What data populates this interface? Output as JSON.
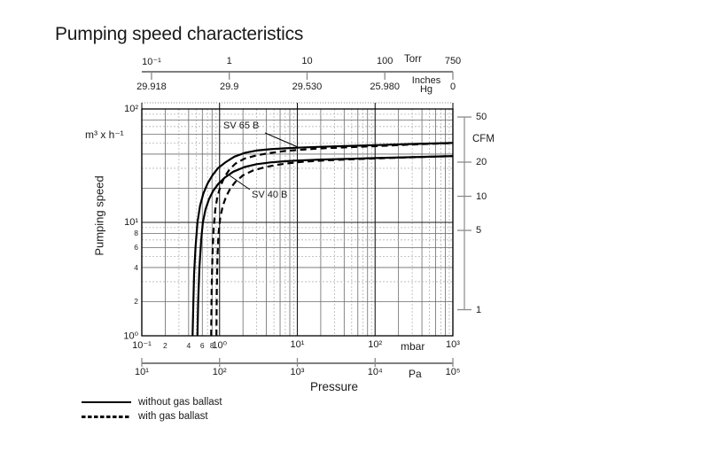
{
  "title": "Pumping speed characteristics",
  "chart_data": {
    "type": "line",
    "title": "Pumping speed characteristics",
    "xlabel": "Pressure",
    "x_scale": "log",
    "y_scale": "log",
    "x_range_mbar": [
      0.1,
      1000
    ],
    "y_range_m3h": [
      1,
      100
    ],
    "grid": true,
    "colors": {
      "line": "#000000",
      "grid_major": "#1a1a1a",
      "grid_minor_dark": "#6a6a6a",
      "grid_minor_light": "#b4b4b4",
      "text": "#1a1a1a"
    },
    "axes": {
      "torr": {
        "unit": "Torr",
        "side": "top",
        "ticks": [
          {
            "label": "10⁻¹",
            "mbar": 0.1333
          },
          {
            "label": "1",
            "mbar": 1.333
          },
          {
            "label": "10",
            "mbar": 13.33
          },
          {
            "label": "100",
            "mbar": 133.3
          },
          {
            "label": "750",
            "mbar": 1000
          }
        ]
      },
      "inches_hg": {
        "unit": "Inches Hg",
        "side": "top",
        "ticks": [
          {
            "label": "29.918",
            "mbar": 0.1333
          },
          {
            "label": "29.9",
            "mbar": 1.333
          },
          {
            "label": "29.530",
            "mbar": 13.33
          },
          {
            "label": "25.980",
            "mbar": 133.3
          },
          {
            "label": "0",
            "mbar": 1000
          }
        ]
      },
      "mbar": {
        "unit": "mbar",
        "side": "bottom",
        "ticks": [
          {
            "label": "10⁻¹",
            "mbar": 0.1
          },
          {
            "label": "10⁰",
            "mbar": 1
          },
          {
            "label": "10¹",
            "mbar": 10
          },
          {
            "label": "10²",
            "mbar": 100
          },
          {
            "label": "10³",
            "mbar": 1000
          }
        ],
        "minor_labels": [
          {
            "label": "2",
            "mbar": 0.2
          },
          {
            "label": "4",
            "mbar": 0.4
          },
          {
            "label": "6",
            "mbar": 0.6
          },
          {
            "label": "8",
            "mbar": 0.8
          }
        ]
      },
      "pa": {
        "unit": "Pa",
        "side": "bottom",
        "ticks": [
          {
            "label": "10¹",
            "mbar": 0.1
          },
          {
            "label": "10²",
            "mbar": 1
          },
          {
            "label": "10³",
            "mbar": 10
          },
          {
            "label": "10⁴",
            "mbar": 100
          },
          {
            "label": "10⁵",
            "mbar": 1000
          }
        ]
      },
      "m3h": {
        "unit": "m³ x h⁻¹",
        "label": "Pumping speed",
        "side": "left",
        "ticks": [
          {
            "label": "10⁰",
            "value": 1
          },
          {
            "label": "10¹",
            "value": 10
          },
          {
            "label": "10²",
            "value": 100
          }
        ],
        "minor_labels": [
          {
            "label": "2",
            "value": 2
          },
          {
            "label": "4",
            "value": 4
          },
          {
            "label": "6",
            "value": 6
          },
          {
            "label": "8",
            "value": 8
          }
        ]
      },
      "cfm": {
        "unit": "CFM",
        "side": "right",
        "ticks": [
          {
            "label": "1",
            "m3h": 1.699
          },
          {
            "label": "5",
            "m3h": 8.495
          },
          {
            "label": "10",
            "m3h": 16.99
          },
          {
            "label": "20",
            "m3h": 33.98
          },
          {
            "label": "50",
            "m3h": 84.95
          }
        ]
      }
    },
    "series": [
      {
        "name": "SV 65 B",
        "variant": "without gas ballast",
        "style": "solid",
        "points": [
          [
            0.45,
            1
          ],
          [
            0.46,
            2
          ],
          [
            0.47,
            3.5
          ],
          [
            0.49,
            6
          ],
          [
            0.52,
            10
          ],
          [
            0.56,
            14
          ],
          [
            0.62,
            18
          ],
          [
            0.7,
            22
          ],
          [
            0.81,
            26
          ],
          [
            0.95,
            30
          ],
          [
            1.2,
            34
          ],
          [
            1.55,
            38
          ],
          [
            2.1,
            41
          ],
          [
            3.0,
            43
          ],
          [
            4.5,
            44.2
          ],
          [
            7,
            45
          ],
          [
            10,
            45.6
          ],
          [
            20,
            46.4
          ],
          [
            50,
            47.3
          ],
          [
            100,
            48
          ],
          [
            300,
            49.1
          ],
          [
            1000,
            50.2
          ]
        ]
      },
      {
        "name": "SV 65 B",
        "variant": "with gas ballast",
        "style": "dashed",
        "points": [
          [
            0.78,
            1
          ],
          [
            0.79,
            2.5
          ],
          [
            0.81,
            5
          ],
          [
            0.84,
            9
          ],
          [
            0.88,
            13
          ],
          [
            0.94,
            17
          ],
          [
            1.03,
            21
          ],
          [
            1.15,
            25
          ],
          [
            1.33,
            29
          ],
          [
            1.6,
            33
          ],
          [
            2.1,
            36.5
          ],
          [
            3.0,
            39
          ],
          [
            4.5,
            41
          ],
          [
            7,
            42.6
          ],
          [
            10,
            43.5
          ],
          [
            20,
            44.9
          ],
          [
            50,
            46.1
          ],
          [
            100,
            47
          ],
          [
            300,
            48.6
          ],
          [
            1000,
            50
          ]
        ]
      },
      {
        "name": "SV 40 B",
        "variant": "without gas ballast",
        "style": "solid",
        "points": [
          [
            0.52,
            1
          ],
          [
            0.53,
            2
          ],
          [
            0.55,
            4
          ],
          [
            0.58,
            7
          ],
          [
            0.61,
            10
          ],
          [
            0.66,
            13
          ],
          [
            0.73,
            16
          ],
          [
            0.83,
            19
          ],
          [
            0.97,
            22
          ],
          [
            1.18,
            25
          ],
          [
            1.5,
            28
          ],
          [
            2.1,
            30.8
          ],
          [
            3.0,
            32.6
          ],
          [
            4.5,
            33.8
          ],
          [
            7,
            34.6
          ],
          [
            10,
            35.1
          ],
          [
            20,
            35.8
          ],
          [
            50,
            36.4
          ],
          [
            100,
            36.9
          ],
          [
            300,
            37.6
          ],
          [
            1000,
            38.4
          ]
        ]
      },
      {
        "name": "SV 40 B",
        "variant": "with gas ballast",
        "style": "dashed",
        "points": [
          [
            0.91,
            1
          ],
          [
            0.92,
            2.5
          ],
          [
            0.94,
            5
          ],
          [
            0.97,
            8
          ],
          [
            1.02,
            11
          ],
          [
            1.1,
            14
          ],
          [
            1.22,
            17
          ],
          [
            1.38,
            20
          ],
          [
            1.62,
            23
          ],
          [
            2.0,
            26
          ],
          [
            2.7,
            28.7
          ],
          [
            3.8,
            30.6
          ],
          [
            5.5,
            32.2
          ],
          [
            8,
            33.3
          ],
          [
            12,
            34.3
          ],
          [
            25,
            35.3
          ],
          [
            60,
            36.2
          ],
          [
            120,
            36.8
          ],
          [
            300,
            37.5
          ],
          [
            1000,
            38.4
          ]
        ]
      }
    ],
    "annotations": [
      {
        "text": "SV 65 B",
        "points_to": "SV 65 B without gas ballast"
      },
      {
        "text": "SV 40 B",
        "points_to": "SV 40 B without gas ballast"
      }
    ],
    "legend": [
      {
        "style": "solid",
        "label": "without gas ballast"
      },
      {
        "style": "dashed",
        "label": "with gas ballast"
      }
    ]
  }
}
